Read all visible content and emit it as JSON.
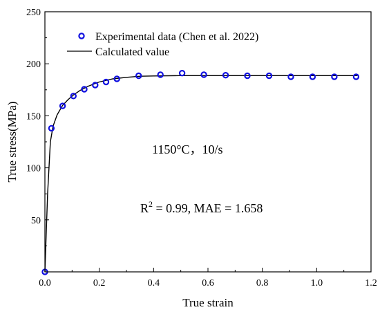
{
  "chart_data": {
    "type": "scatter",
    "xlabel": "True strain",
    "ylabel": "True stress(MPa)",
    "xlim": [
      0.0,
      1.2
    ],
    "ylim": [
      0,
      250
    ],
    "x_ticks": [
      "0.0",
      "0.2",
      "0.4",
      "0.6",
      "0.8",
      "1.0",
      "1.2"
    ],
    "y_ticks": [
      "50",
      "100",
      "150",
      "200",
      "250"
    ],
    "grid": false,
    "legend_position": "top-left",
    "series": [
      {
        "name": "Experimental data (Chen et al. 2022)",
        "kind": "scatter",
        "marker": "open-circle",
        "color": "#1010e0",
        "x": [
          0.0,
          0.024,
          0.065,
          0.105,
          0.145,
          0.185,
          0.225,
          0.265,
          0.345,
          0.425,
          0.505,
          0.585,
          0.665,
          0.745,
          0.825,
          0.905,
          0.985,
          1.065,
          1.145
        ],
        "y": [
          0,
          138,
          159.5,
          169,
          175.5,
          179.5,
          182.5,
          185.5,
          188.5,
          189.5,
          191,
          189.5,
          189,
          188.5,
          188.5,
          187.5,
          187.5,
          187.5,
          187.5
        ]
      },
      {
        "name": "Calculated value",
        "kind": "line",
        "color": "#000000",
        "x": [
          0.0,
          0.01,
          0.02,
          0.03,
          0.045,
          0.065,
          0.085,
          0.105,
          0.13,
          0.16,
          0.2,
          0.25,
          0.3,
          0.35,
          0.4,
          0.5,
          0.6,
          0.8,
          1.0,
          1.15
        ],
        "y": [
          0,
          75,
          125,
          140,
          151,
          160,
          165.5,
          170,
          174.5,
          178.5,
          182.5,
          185.5,
          187,
          188,
          188.3,
          188.6,
          188.6,
          188.6,
          188.6,
          188.6
        ]
      }
    ],
    "annotations": [
      "1150°C，10/s",
      "R",
      "2",
      " = 0.99, MAE = 1.658"
    ]
  }
}
